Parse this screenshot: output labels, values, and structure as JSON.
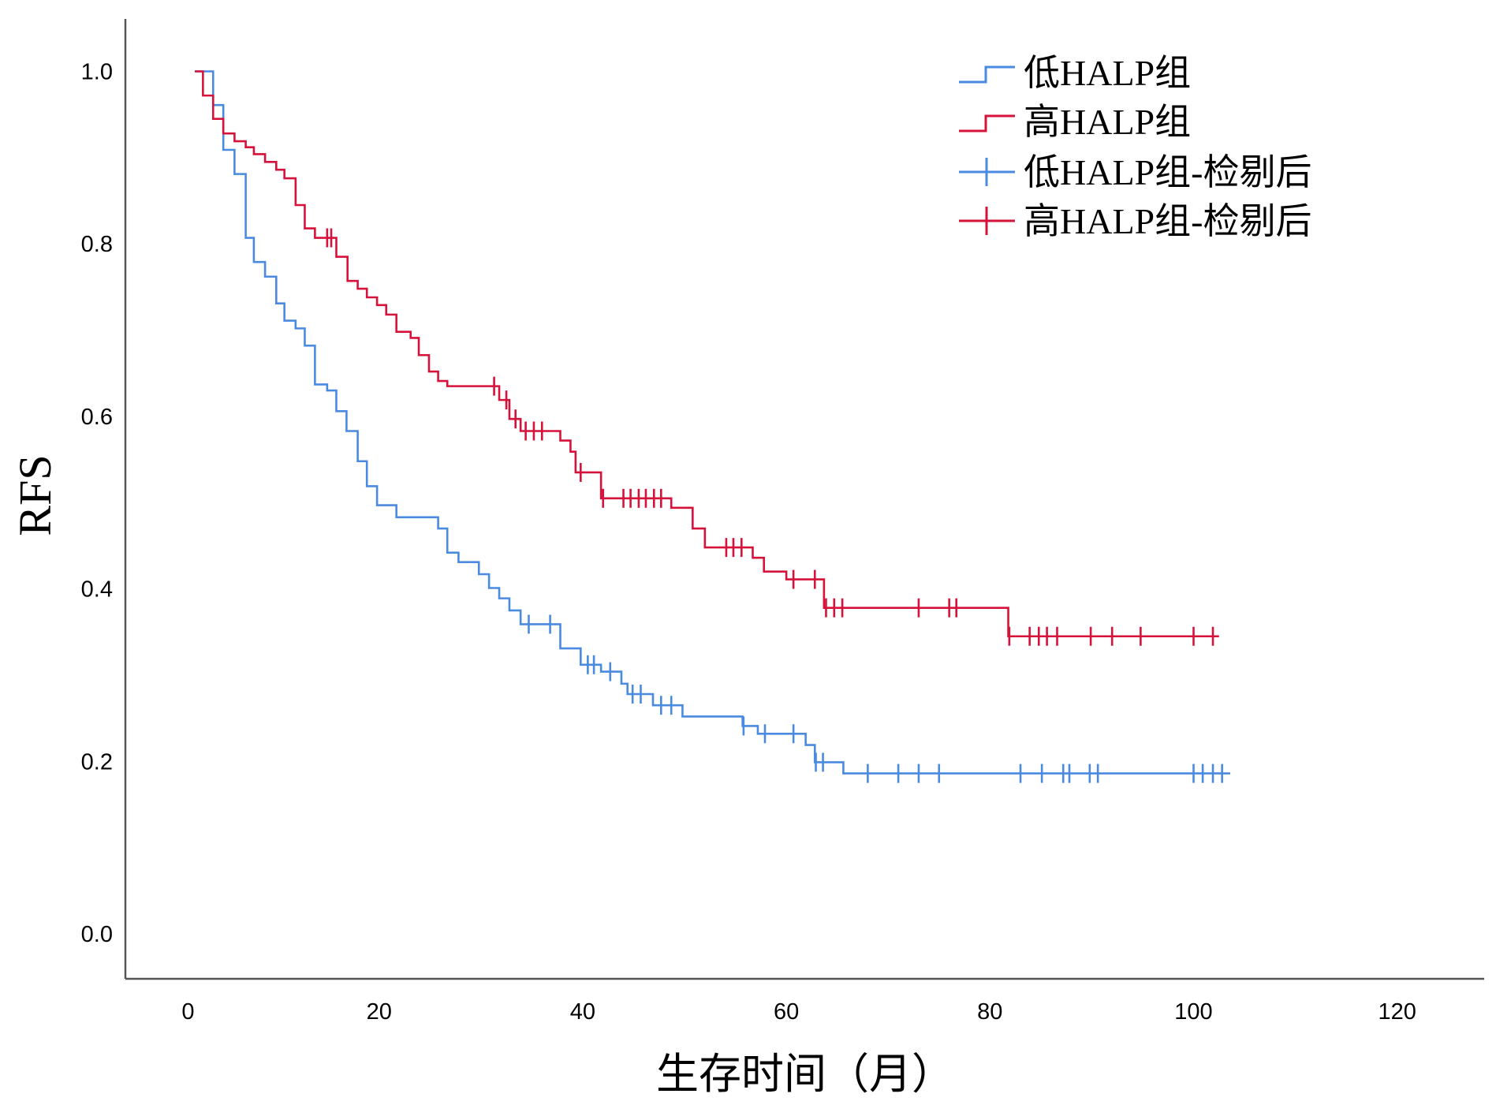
{
  "chart_data": {
    "type": "line",
    "subtype": "kaplan-meier-step",
    "xlabel": "生存时间（月）",
    "ylabel": "RFS",
    "xlim": [
      0,
      120
    ],
    "ylim": [
      0,
      1.0
    ],
    "xticks": [
      "0",
      "20",
      "40",
      "60",
      "80",
      "100",
      "120"
    ],
    "xtick_values": [
      0,
      20,
      40,
      60,
      80,
      100,
      120
    ],
    "yticks": [
      "0.0",
      "0.2",
      "0.4",
      "0.6",
      "0.8",
      "1.0"
    ],
    "ytick_values": [
      0,
      0.2,
      0.4,
      0.6,
      0.8,
      1.0
    ],
    "grid": false,
    "legend_position": "top-right",
    "legend": [
      "低HALP组",
      "高HALP组",
      "低HALP组-检剔后",
      "高HALP组-检剔后"
    ],
    "series": [
      {
        "name": "低HALP组",
        "censor_name": "低HALP组-检剔后",
        "color": "#4a8ae0",
        "start": 1.9,
        "end": 103.6,
        "steps": [
          [
            3.7,
            0.961
          ],
          [
            4.7,
            0.909
          ],
          [
            5.8,
            0.881
          ],
          [
            6.9,
            0.807
          ],
          [
            7.7,
            0.779
          ],
          [
            8.8,
            0.762
          ],
          [
            9.9,
            0.731
          ],
          [
            10.7,
            0.711
          ],
          [
            11.8,
            0.702
          ],
          [
            12.7,
            0.682
          ],
          [
            13.7,
            0.637
          ],
          [
            14.9,
            0.63
          ],
          [
            15.8,
            0.606
          ],
          [
            16.8,
            0.583
          ],
          [
            17.9,
            0.548
          ],
          [
            18.8,
            0.519
          ],
          [
            19.8,
            0.497
          ],
          [
            21.7,
            0.483
          ],
          [
            25.8,
            0.47
          ],
          [
            26.7,
            0.442
          ],
          [
            27.8,
            0.431
          ],
          [
            29.8,
            0.417
          ],
          [
            30.8,
            0.401
          ],
          [
            31.8,
            0.389
          ],
          [
            32.8,
            0.375
          ],
          [
            33.9,
            0.359
          ],
          [
            37.8,
            0.331
          ],
          [
            39.8,
            0.312
          ],
          [
            41.8,
            0.304
          ],
          [
            43.8,
            0.29
          ],
          [
            44.4,
            0.278
          ],
          [
            46.9,
            0.265
          ],
          [
            49.8,
            0.252
          ],
          [
            55.7,
            0.241
          ],
          [
            57.2,
            0.232
          ],
          [
            61.9,
            0.219
          ],
          [
            62.8,
            0.199
          ],
          [
            65.6,
            0.186
          ]
        ],
        "censored": [
          34.7,
          36.8,
          40.5,
          41.1,
          42.7,
          44.9,
          45.7,
          47.7,
          48.7,
          55.8,
          57.9,
          60.7,
          62.9,
          63.6,
          68.0,
          71.0,
          73.0,
          75.0,
          83.0,
          85.1,
          87.2,
          87.8,
          89.8,
          90.6,
          100.0,
          100.9,
          101.9,
          102.8
        ]
      },
      {
        "name": "高HALP组",
        "censor_name": "高HALP组-检剔后",
        "color": "#d6123a",
        "start": 1.9,
        "end": 102.5,
        "steps": [
          [
            2.7,
            0.972
          ],
          [
            3.7,
            0.945
          ],
          [
            4.7,
            0.928
          ],
          [
            5.8,
            0.919
          ],
          [
            6.9,
            0.912
          ],
          [
            7.7,
            0.904
          ],
          [
            8.8,
            0.895
          ],
          [
            9.9,
            0.886
          ],
          [
            10.7,
            0.876
          ],
          [
            11.8,
            0.845
          ],
          [
            12.7,
            0.818
          ],
          [
            13.7,
            0.807
          ],
          [
            15.8,
            0.785
          ],
          [
            16.9,
            0.757
          ],
          [
            17.9,
            0.748
          ],
          [
            18.8,
            0.738
          ],
          [
            19.8,
            0.729
          ],
          [
            20.7,
            0.718
          ],
          [
            21.7,
            0.698
          ],
          [
            23.1,
            0.691
          ],
          [
            23.9,
            0.671
          ],
          [
            24.9,
            0.652
          ],
          [
            25.8,
            0.641
          ],
          [
            26.7,
            0.635
          ],
          [
            31.8,
            0.619
          ],
          [
            32.8,
            0.597
          ],
          [
            33.9,
            0.583
          ],
          [
            37.8,
            0.572
          ],
          [
            38.8,
            0.559
          ],
          [
            39.3,
            0.535
          ],
          [
            41.8,
            0.505
          ],
          [
            48.7,
            0.494
          ],
          [
            50.8,
            0.47
          ],
          [
            52.0,
            0.448
          ],
          [
            56.7,
            0.436
          ],
          [
            57.8,
            0.42
          ],
          [
            60.0,
            0.411
          ],
          [
            63.7,
            0.378
          ],
          [
            81.8,
            0.345
          ]
        ],
        "censored": [
          14.9,
          15.3,
          31.3,
          32.5,
          33.4,
          34.4,
          35.2,
          36.0,
          39.8,
          42.0,
          44.0,
          44.7,
          45.5,
          46.2,
          47.0,
          47.7,
          54.1,
          54.8,
          55.6,
          60.7,
          62.8,
          63.9,
          64.7,
          65.5,
          73.0,
          76.0,
          76.7,
          81.9,
          83.9,
          84.8,
          85.6,
          86.6,
          89.9,
          92.0,
          94.8,
          100.0,
          101.9
        ]
      }
    ]
  }
}
